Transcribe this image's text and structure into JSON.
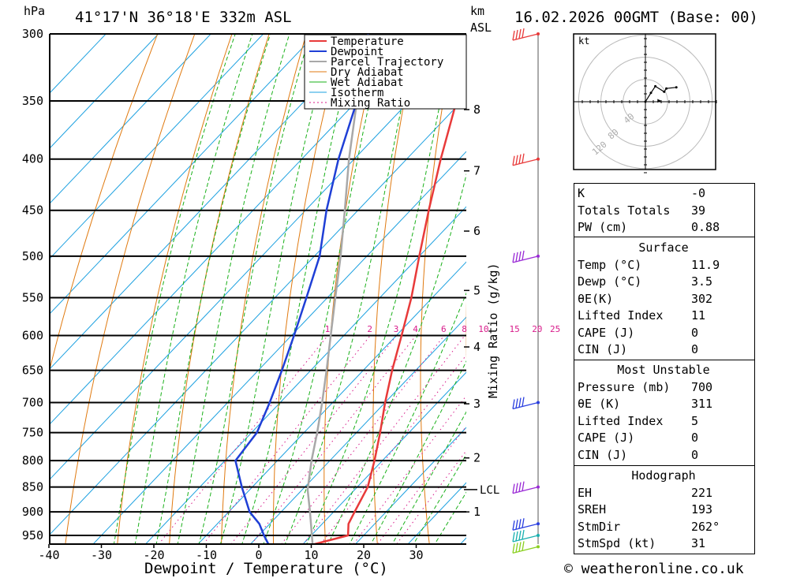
{
  "header": {
    "units_left": "hPa",
    "location": "41°17'N  36°18'E  332m  ASL",
    "units_km": "km",
    "units_asl": "ASL",
    "datetime": "16.02.2026  00GMT  (Base: 00)"
  },
  "footer": {
    "copyright": "© weatheronline.co.uk"
  },
  "chart_data": {
    "type": "skew-t",
    "xlabel": "Dewpoint / Temperature (°C)",
    "ylabel": "hPa",
    "xlim": [
      -40,
      40
    ],
    "ylim": [
      970,
      300
    ],
    "pressure_ticks": [
      300,
      350,
      400,
      450,
      500,
      550,
      600,
      650,
      700,
      750,
      800,
      850,
      900,
      950
    ],
    "pressure_labels": [
      "300",
      "350",
      "400",
      "450",
      "500",
      "550",
      "600",
      "650",
      "700",
      "750",
      "800",
      "850",
      "900",
      "950"
    ],
    "temp_ticks": [
      -40,
      -30,
      -20,
      -10,
      0,
      10,
      20,
      30
    ],
    "temp_labels": [
      "-40",
      "-30",
      "-20",
      "-10",
      "0",
      "10",
      "20",
      "30"
    ],
    "km_ticks": [
      1,
      2,
      3,
      4,
      5,
      6,
      7,
      8
    ],
    "km_labels": [
      "1",
      "2",
      "3",
      "4",
      "5",
      "6",
      "7",
      "8"
    ],
    "lcl_label": "LCL",
    "lcl_pressure": 855,
    "mixing_ratio_title": "Mixing Ratio (g/kg)",
    "mixing_ratios": [
      1,
      2,
      3,
      4,
      6,
      8,
      10,
      15,
      20,
      25
    ],
    "mixing_ratio_labels": [
      "1",
      "2",
      "3",
      "4",
      "6",
      "8",
      "10",
      "15",
      "20",
      "25"
    ],
    "legend": [
      "Temperature",
      "Dewpoint",
      "Parcel Trajectory",
      "Dry Adiabat",
      "Wet Adiabat",
      "Isotherm",
      "Mixing Ratio"
    ],
    "colors": {
      "temperature": "#e83a3a",
      "dewpoint": "#1f3fd6",
      "parcel": "#a8a8a8",
      "dry_adiabat": "#e07a10",
      "wet_adiabat": "#19b019",
      "isotherm": "#1ba0e0",
      "mixing_ratio": "#d81a8a"
    },
    "temperature": [
      [
        970,
        12
      ],
      [
        950,
        17
      ],
      [
        925,
        15
      ],
      [
        900,
        14
      ],
      [
        850,
        12
      ],
      [
        800,
        8.5
      ],
      [
        750,
        4.5
      ],
      [
        700,
        0
      ],
      [
        650,
        -4.5
      ],
      [
        600,
        -9
      ],
      [
        550,
        -14
      ],
      [
        500,
        -20
      ],
      [
        450,
        -26.5
      ],
      [
        400,
        -33.5
      ],
      [
        350,
        -41
      ],
      [
        300,
        -49
      ]
    ],
    "dewpoint": [
      [
        970,
        3.5
      ],
      [
        950,
        1
      ],
      [
        925,
        -2
      ],
      [
        900,
        -6
      ],
      [
        850,
        -12
      ],
      [
        800,
        -18
      ],
      [
        750,
        -19
      ],
      [
        700,
        -22
      ],
      [
        650,
        -25.5
      ],
      [
        600,
        -29.5
      ],
      [
        550,
        -34
      ],
      [
        500,
        -39
      ],
      [
        450,
        -46
      ],
      [
        400,
        -53
      ],
      [
        350,
        -60
      ],
      [
        300,
        -70
      ]
    ],
    "parcel": [
      [
        970,
        11.9
      ],
      [
        900,
        5.5
      ],
      [
        855,
        1
      ],
      [
        800,
        -3.5
      ],
      [
        750,
        -7.5
      ],
      [
        700,
        -12
      ],
      [
        650,
        -17
      ],
      [
        600,
        -22.5
      ],
      [
        550,
        -28.5
      ],
      [
        500,
        -35
      ],
      [
        450,
        -42.5
      ],
      [
        400,
        -51
      ],
      [
        350,
        -60
      ],
      [
        320,
        -66
      ]
    ],
    "wind_barbs": [
      {
        "p": 300,
        "color": "#e83a3a"
      },
      {
        "p": 400,
        "color": "#e83a3a"
      },
      {
        "p": 500,
        "color": "#9a2ad6"
      },
      {
        "p": 700,
        "color": "#2a3fe0"
      },
      {
        "p": 850,
        "color": "#9a2ad6"
      },
      {
        "p": 925,
        "color": "#2a3fe0"
      },
      {
        "p": 950,
        "color": "#19b0b0"
      },
      {
        "p": 975,
        "color": "#8ad020"
      }
    ]
  },
  "hodograph": {
    "unit_label": "kt",
    "rings": [
      40,
      80,
      120
    ],
    "ring_labels": [
      "40",
      "80",
      "120"
    ],
    "trace_kt": [
      [
        0,
        0
      ],
      [
        5,
        8
      ],
      [
        9,
        14
      ],
      [
        17,
        9
      ],
      [
        19,
        12
      ],
      [
        28,
        13
      ]
    ]
  },
  "indices": {
    "general": [
      {
        "label": "K",
        "value": "-0"
      },
      {
        "label": "Totals Totals",
        "value": "39"
      },
      {
        "label": "PW (cm)",
        "value": "0.88"
      }
    ],
    "surface_title": "Surface",
    "surface": [
      {
        "label": "Temp (°C)",
        "value": "11.9"
      },
      {
        "label": "Dewp (°C)",
        "value": "3.5"
      },
      {
        "label": "θE(K)",
        "value": "302"
      },
      {
        "label": "Lifted Index",
        "value": "11"
      },
      {
        "label": "CAPE (J)",
        "value": "0"
      },
      {
        "label": "CIN (J)",
        "value": "0"
      }
    ],
    "unstable_title": "Most Unstable",
    "unstable": [
      {
        "label": "Pressure (mb)",
        "value": "700"
      },
      {
        "label": "θE (K)",
        "value": "311"
      },
      {
        "label": "Lifted Index",
        "value": "5"
      },
      {
        "label": "CAPE (J)",
        "value": "0"
      },
      {
        "label": "CIN (J)",
        "value": "0"
      }
    ],
    "hodograph_title": "Hodograph",
    "hodo": [
      {
        "label": "EH",
        "value": "221"
      },
      {
        "label": "SREH",
        "value": "193"
      },
      {
        "label": "StmDir",
        "value": "262°"
      },
      {
        "label": "StmSpd (kt)",
        "value": "31"
      }
    ]
  }
}
